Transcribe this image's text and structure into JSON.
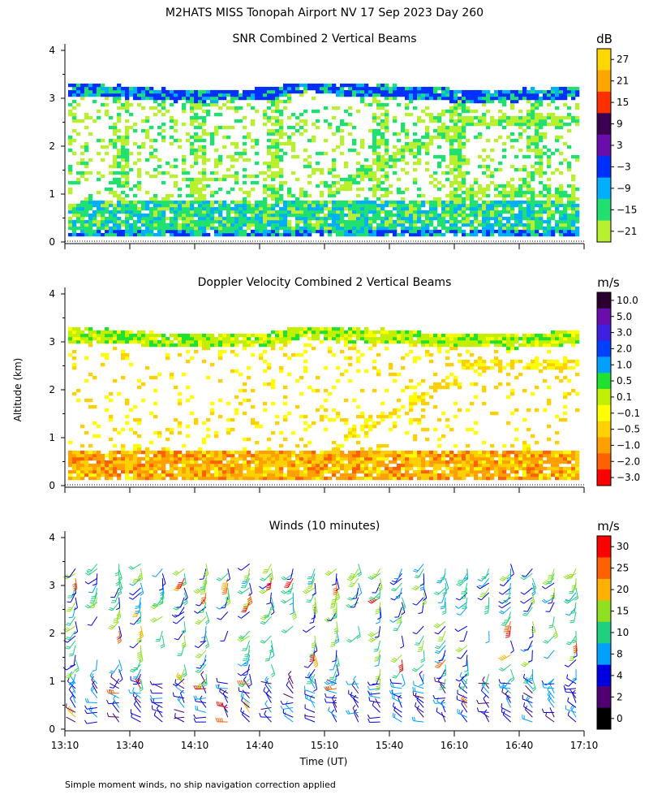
{
  "page": {
    "title": "M2HATS MISS Tonopah Airport NV  17 Sep 2023 Day 260",
    "ylabel": "Altitude (km)",
    "xlabel": "Time (UT)",
    "footnote": "Simple moment winds, no ship navigation correction applied",
    "time_ticks": [
      "13:10",
      "13:40",
      "14:10",
      "14:40",
      "15:10",
      "15:40",
      "16:10",
      "16:40",
      "17:10"
    ],
    "alt_ticks": [
      "0",
      "1",
      "2",
      "3",
      "4"
    ]
  },
  "chart_data": [
    {
      "type": "heatmap",
      "title": "SNR Combined 2 Vertical Beams",
      "unit": "dB",
      "xlabel": "Time (UT)",
      "ylabel": "Altitude (km)",
      "xlim": [
        "13:10",
        "17:10"
      ],
      "ylim": [
        0,
        4
      ],
      "colorbar": {
        "labels": [
          "27",
          "21",
          "15",
          "9",
          "3",
          "−3",
          "−9",
          "−15",
          "−21"
        ],
        "colors": [
          "#FFD700",
          "#FFA500",
          "#FF3000",
          "#3C0050",
          "#6A0DAD",
          "#0030FF",
          "#00B0FF",
          "#20E070",
          "#B8F030"
        ]
      },
      "features": {
        "layer_top_km": 3.1,
        "near_surface_band_km": [
          0.1,
          0.7
        ],
        "descending_layer_km_at_end": 2.5
      }
    },
    {
      "type": "heatmap",
      "title": "Doppler Velocity Combined 2 Vertical Beams",
      "unit": "m/s",
      "xlabel": "Time (UT)",
      "ylabel": "Altitude (km)",
      "xlim": [
        "13:10",
        "17:10"
      ],
      "ylim": [
        0,
        4
      ],
      "colorbar": {
        "labels": [
          "10.0",
          "5.0",
          "3.0",
          "2.0",
          "1.0",
          "0.5",
          "0.1",
          "−0.1",
          "−0.5",
          "−1.0",
          "−2.0",
          "−3.0"
        ],
        "colors": [
          "#2A0030",
          "#6A0DAD",
          "#4020E0",
          "#0040FF",
          "#00A0FF",
          "#20E030",
          "#C0F000",
          "#FFFF00",
          "#FFD000",
          "#FFA000",
          "#FF6000",
          "#FF0000"
        ]
      }
    },
    {
      "type": "scatter",
      "title": "Winds (10 minutes)",
      "unit": "m/s",
      "xlabel": "Time (UT)",
      "ylabel": "Altitude (km)",
      "xlim": [
        "13:10",
        "17:10"
      ],
      "ylim": [
        0,
        4
      ],
      "colorbar": {
        "labels": [
          "30",
          "25",
          "20",
          "15",
          "10",
          "8",
          "4",
          "2",
          "0"
        ],
        "colors": [
          "#FF0000",
          "#FF6000",
          "#FFB000",
          "#90E020",
          "#20D080",
          "#00A0FF",
          "#0000E0",
          "#500070",
          "#000000"
        ]
      }
    }
  ]
}
